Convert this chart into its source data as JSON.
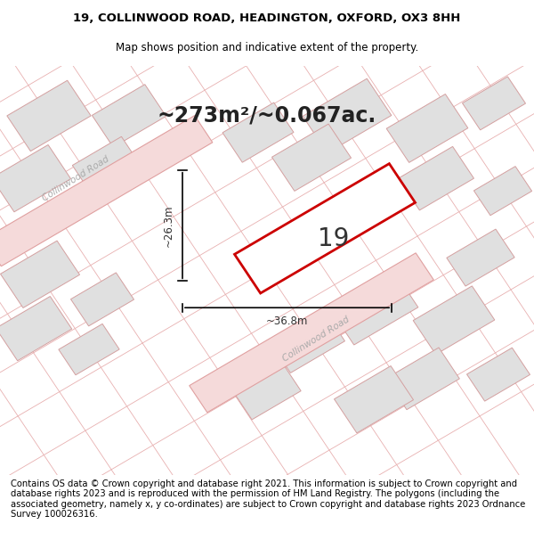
{
  "title_line1": "19, COLLINWOOD ROAD, HEADINGTON, OXFORD, OX3 8HH",
  "title_line2": "Map shows position and indicative extent of the property.",
  "area_text": "~273m²/~0.067ac.",
  "label_number": "19",
  "dim_width": "~36.8m",
  "dim_height": "~26.3m",
  "footer_text": "Contains OS data © Crown copyright and database right 2021. This information is subject to Crown copyright and database rights 2023 and is reproduced with the permission of HM Land Registry. The polygons (including the associated geometry, namely x, y co-ordinates) are subject to Crown copyright and database rights 2023 Ordnance Survey 100026316.",
  "map_bg": "#f2f2f2",
  "road_fill": "#f5dada",
  "road_line": "#e8b0b0",
  "block_fill": "#e0e0e0",
  "block_edge": "#e0a0a0",
  "plot_edge_color": "#cc0000",
  "road_label_color": "#aaaaaa",
  "title_fontsize": 9.5,
  "subtitle_fontsize": 8.5,
  "area_fontsize": 17,
  "label_fontsize": 20,
  "footer_fontsize": 7.2,
  "dim_fontsize": 8.5
}
